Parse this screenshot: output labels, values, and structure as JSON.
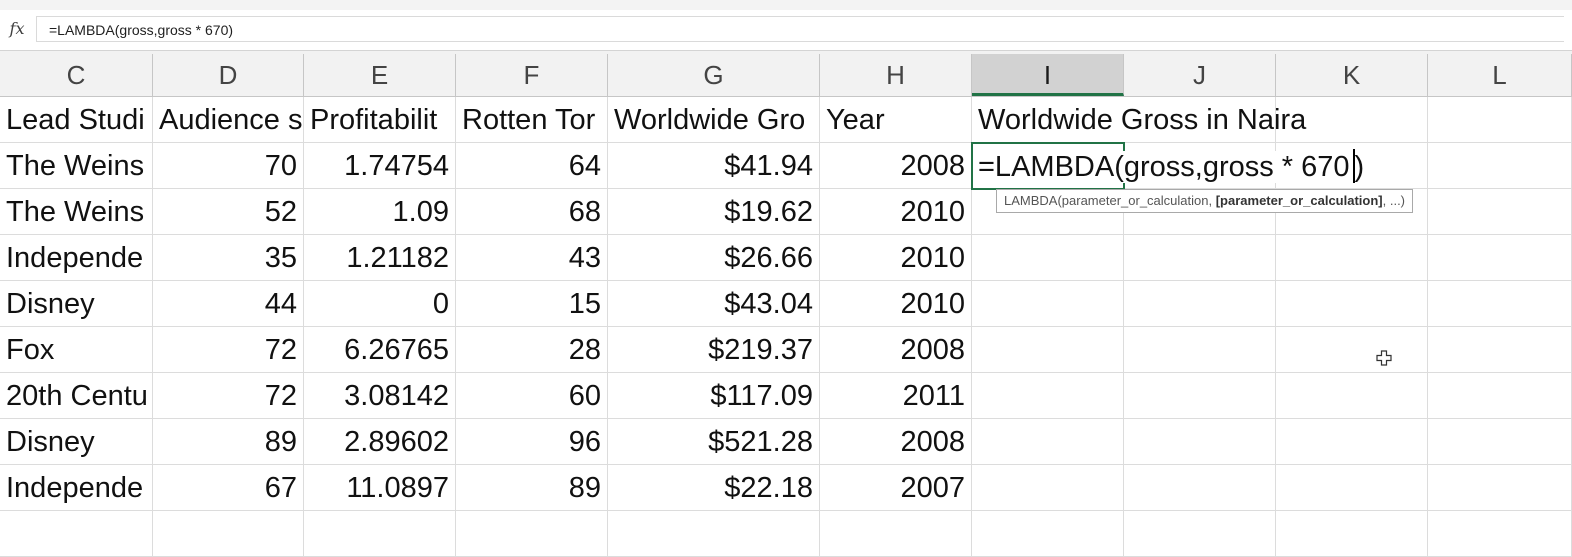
{
  "formula_bar": {
    "fx_label": "fx",
    "value": "=LAMBDA(gross,gross * 670)"
  },
  "columns": [
    "C",
    "D",
    "E",
    "F",
    "G",
    "H",
    "I",
    "J",
    "K",
    "L"
  ],
  "selected_column": "I",
  "headers": {
    "C": "Lead Studi",
    "D": "Audience s",
    "E": "Profitabilit",
    "F": "Rotten Tor",
    "G": "Worldwide Gro",
    "H": "Year",
    "I": "Worldwide Gross in Naira"
  },
  "rows": [
    {
      "C": "The Weins",
      "D": "70",
      "E": "1.74754",
      "F": "64",
      "G": "$41.94",
      "H": "2008"
    },
    {
      "C": "The Weins",
      "D": "52",
      "E": "1.09",
      "F": "68",
      "G": "$19.62",
      "H": "2010"
    },
    {
      "C": "Independe",
      "D": "35",
      "E": "1.21182",
      "F": "43",
      "G": "$26.66",
      "H": "2010"
    },
    {
      "C": "Disney",
      "D": "44",
      "E": "0",
      "F": "15",
      "G": "$43.04",
      "H": "2010"
    },
    {
      "C": "Fox",
      "D": "72",
      "E": "6.26765",
      "F": "28",
      "G": "$219.37",
      "H": "2008"
    },
    {
      "C": "20th Centu",
      "D": "72",
      "E": "3.08142",
      "F": "60",
      "G": "$117.09",
      "H": "2011"
    },
    {
      "C": "Disney",
      "D": "89",
      "E": "2.89602",
      "F": "96",
      "G": "$521.28",
      "H": "2008"
    },
    {
      "C": "Independe",
      "D": "67",
      "E": "11.0897",
      "F": "89",
      "G": "$22.18",
      "H": "2007"
    }
  ],
  "editing_cell": {
    "column": "I",
    "row_index": 0,
    "value": "=LAMBDA(gross,gross * 670)"
  },
  "tooltip": {
    "prefix": "LAMBDA(parameter_or_calculation, ",
    "bold": "[parameter_or_calculation]",
    "suffix": ", ...)"
  },
  "cursor_icon": "plus-cursor-icon",
  "colors": {
    "selection_green": "#217346",
    "header_bg": "#f2f2f2",
    "selected_header_bg": "#d2d2d2",
    "gridline": "#dcdcdc"
  }
}
